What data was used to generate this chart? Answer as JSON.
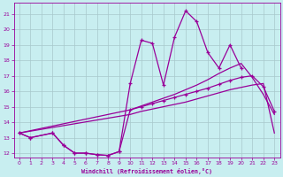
{
  "bg_color": "#c8eef0",
  "grid_color": "#b0c8cc",
  "line_color": "#990099",
  "xlabel": "Windchill (Refroidissement éolien,°C)",
  "xlim": [
    -0.5,
    23.5
  ],
  "ylim": [
    11.7,
    21.7
  ],
  "xticks": [
    0,
    1,
    2,
    3,
    4,
    5,
    6,
    7,
    8,
    9,
    10,
    11,
    12,
    13,
    14,
    15,
    16,
    17,
    18,
    19,
    20,
    21,
    22,
    23
  ],
  "yticks": [
    12,
    13,
    14,
    15,
    16,
    17,
    18,
    19,
    20,
    21
  ],
  "curve1_x": [
    0,
    1,
    3,
    4,
    5,
    6,
    7,
    8,
    9,
    10,
    11,
    12,
    13,
    14,
    15,
    16,
    17,
    18,
    19,
    20
  ],
  "curve1_y": [
    13.3,
    13.0,
    13.3,
    12.5,
    12.0,
    12.0,
    11.9,
    11.85,
    12.1,
    16.5,
    19.3,
    19.1,
    16.4,
    19.5,
    21.2,
    20.5,
    18.5,
    17.5,
    19.0,
    17.5
  ],
  "curve2_x": [
    0,
    1,
    3,
    4,
    5,
    6,
    7,
    8,
    9,
    10,
    11,
    12,
    13,
    14,
    15,
    16,
    17,
    18,
    19,
    20,
    21,
    22,
    23
  ],
  "curve2_y": [
    13.3,
    13.0,
    13.3,
    12.5,
    12.0,
    12.0,
    11.9,
    11.85,
    12.1,
    14.8,
    15.0,
    15.2,
    15.4,
    15.6,
    15.8,
    16.0,
    16.2,
    16.45,
    16.7,
    16.9,
    17.0,
    16.3,
    14.7
  ],
  "curve3_x": [
    0,
    10,
    11,
    12,
    13,
    14,
    15,
    16,
    17,
    18,
    19,
    20,
    21,
    22,
    23
  ],
  "curve3_y": [
    13.3,
    14.8,
    15.05,
    15.3,
    15.55,
    15.8,
    16.1,
    16.4,
    16.75,
    17.15,
    17.5,
    17.8,
    16.9,
    15.8,
    14.5
  ],
  "curve4_x": [
    0,
    10,
    11,
    12,
    13,
    14,
    15,
    16,
    17,
    18,
    19,
    20,
    21,
    22,
    23
  ],
  "curve4_y": [
    13.3,
    14.5,
    14.7,
    14.85,
    15.0,
    15.15,
    15.3,
    15.5,
    15.7,
    15.9,
    16.1,
    16.25,
    16.4,
    16.5,
    13.3
  ]
}
